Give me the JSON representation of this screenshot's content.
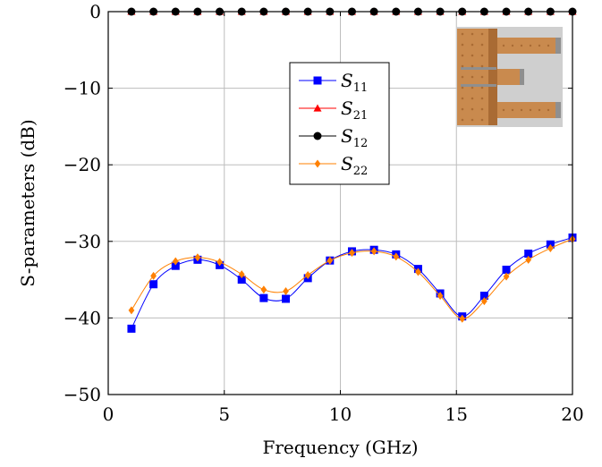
{
  "chart_data": {
    "type": "line",
    "title": "",
    "xlabel": "Frequency (GHz)",
    "ylabel": "S-parameters (dB)",
    "xlim": [
      0,
      20
    ],
    "ylim": [
      -50,
      0
    ],
    "xticks": [
      0,
      5,
      10,
      15,
      20
    ],
    "yticks": [
      0,
      -10,
      -20,
      -30,
      -40,
      -50
    ],
    "xtick_labels": [
      "0",
      "5",
      "10",
      "15",
      "20"
    ],
    "ytick_labels": [
      "0",
      "−10",
      "−20",
      "−30",
      "−40",
      "−50"
    ],
    "grid": true,
    "legend_position": "top-center",
    "x": [
      1.0,
      1.95,
      2.9,
      3.85,
      4.8,
      5.75,
      6.7,
      7.65,
      8.6,
      9.55,
      10.5,
      11.45,
      12.4,
      13.35,
      14.3,
      15.25,
      16.2,
      17.15,
      18.1,
      19.05,
      20.0
    ],
    "series": [
      {
        "name": "S11",
        "label_main": "S",
        "label_sub": "11",
        "color": "#0000ff",
        "marker": "square",
        "values": [
          -41.4,
          -35.6,
          -33.2,
          -32.4,
          -33.1,
          -35.0,
          -37.4,
          -37.5,
          -34.8,
          -32.5,
          -31.3,
          -31.1,
          -31.7,
          -33.6,
          -36.8,
          -39.8,
          -37.1,
          -33.7,
          -31.6,
          -30.4,
          -29.5
        ]
      },
      {
        "name": "S21",
        "label_main": "S",
        "label_sub": "21",
        "color": "#ff0000",
        "marker": "triangle",
        "values": [
          0,
          0,
          0,
          0,
          0,
          0,
          0,
          0,
          0,
          0,
          0,
          0,
          0,
          0,
          0,
          0,
          0,
          0,
          0,
          0,
          0
        ]
      },
      {
        "name": "S12",
        "label_main": "S",
        "label_sub": "12",
        "color": "#000000",
        "marker": "circle",
        "values": [
          0,
          0,
          0,
          0,
          0,
          0,
          0,
          0,
          0,
          0,
          0,
          0,
          0,
          0,
          0,
          0,
          0,
          0,
          0,
          0,
          0
        ]
      },
      {
        "name": "S22",
        "label_main": "S",
        "label_sub": "22",
        "color": "#ff8000",
        "marker": "diamond",
        "values": [
          -39.0,
          -34.5,
          -32.6,
          -32.1,
          -32.7,
          -34.3,
          -36.3,
          -36.5,
          -34.4,
          -32.5,
          -31.5,
          -31.3,
          -32.0,
          -34.0,
          -37.1,
          -40.1,
          -37.8,
          -34.6,
          -32.4,
          -30.9,
          -29.7
        ]
      }
    ]
  },
  "inset": {
    "name": "device-photo",
    "colors": {
      "copper": "#c98a4e",
      "copper_dark": "#a96b34",
      "substrate": "#cfcfcf",
      "shadow": "#8f8f8f"
    }
  }
}
